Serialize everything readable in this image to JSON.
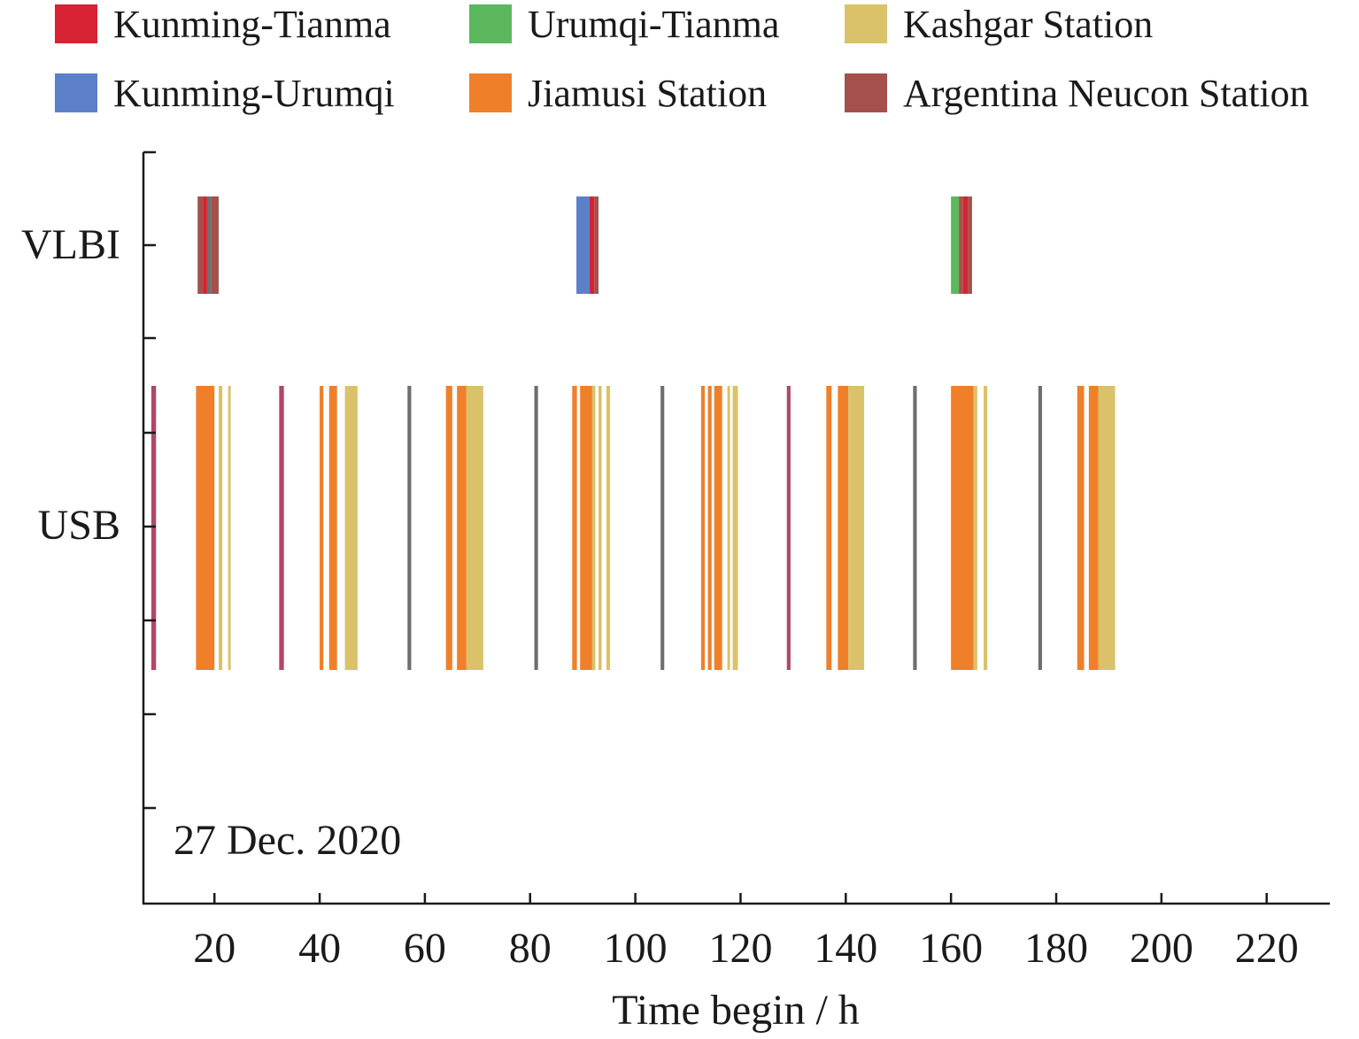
{
  "chart_data": {
    "type": "timeline",
    "legend": [
      {
        "name": "Kunming-Tianma",
        "color": "#d62232"
      },
      {
        "name": "Urumqi-Tianma",
        "color": "#5cb85c"
      },
      {
        "name": "Kashgar Station",
        "color": "#d9c26a"
      },
      {
        "name": "Kunming-Urumqi",
        "color": "#5b80c8"
      },
      {
        "name": "Jiamusi Station",
        "color": "#f07f2a"
      },
      {
        "name": "Argentina Neucon Station",
        "color": "#a5504a"
      }
    ],
    "categories": [
      "VLBI",
      "USB"
    ],
    "xlabel": "Time begin / h",
    "x_ticks": [
      20,
      40,
      60,
      80,
      100,
      120,
      140,
      160,
      180,
      200,
      220
    ],
    "xlim": [
      6.5,
      232
    ],
    "annotation": "27 Dec. 2020",
    "grey_color": "#6e6e6e",
    "magenta_color": "#b0476a",
    "vlbi_segments": [
      {
        "start": 16.8,
        "end": 17.8,
        "color": "#a5504a"
      },
      {
        "start": 17.8,
        "end": 18.6,
        "color": "#d62232"
      },
      {
        "start": 18.6,
        "end": 19.4,
        "color": "#6e6e6e"
      },
      {
        "start": 19.4,
        "end": 20.8,
        "color": "#a5504a"
      },
      {
        "start": 88.8,
        "end": 91.3,
        "color": "#5b80c8"
      },
      {
        "start": 91.3,
        "end": 92.2,
        "color": "#d62232"
      },
      {
        "start": 92.2,
        "end": 93.0,
        "color": "#a5504a"
      },
      {
        "start": 160.0,
        "end": 161.5,
        "color": "#5cb85c"
      },
      {
        "start": 161.5,
        "end": 162.3,
        "color": "#a5504a"
      },
      {
        "start": 162.3,
        "end": 163.2,
        "color": "#d62232"
      },
      {
        "start": 163.2,
        "end": 164.0,
        "color": "#a5504a"
      }
    ],
    "usb_segments": [
      {
        "start": 8.0,
        "end": 8.9,
        "color": "#b0476a"
      },
      {
        "start": 16.5,
        "end": 20.0,
        "color": "#f07f2a"
      },
      {
        "start": 20.8,
        "end": 21.5,
        "color": "#d9c26a"
      },
      {
        "start": 22.6,
        "end": 23.1,
        "color": "#d9c26a"
      },
      {
        "start": 32.3,
        "end": 33.2,
        "color": "#b0476a"
      },
      {
        "start": 40.0,
        "end": 40.7,
        "color": "#f07f2a"
      },
      {
        "start": 41.8,
        "end": 43.3,
        "color": "#f07f2a"
      },
      {
        "start": 44.8,
        "end": 45.3,
        "color": "#d9c26a"
      },
      {
        "start": 45.3,
        "end": 47.2,
        "color": "#d9c26a"
      },
      {
        "start": 56.7,
        "end": 57.4,
        "color": "#6e6e6e"
      },
      {
        "start": 64.0,
        "end": 65.2,
        "color": "#f07f2a"
      },
      {
        "start": 66.1,
        "end": 67.9,
        "color": "#f07f2a"
      },
      {
        "start": 67.9,
        "end": 71.1,
        "color": "#d9c26a"
      },
      {
        "start": 80.8,
        "end": 81.5,
        "color": "#6e6e6e"
      },
      {
        "start": 88.0,
        "end": 88.9,
        "color": "#f07f2a"
      },
      {
        "start": 89.5,
        "end": 91.8,
        "color": "#f07f2a"
      },
      {
        "start": 91.8,
        "end": 92.4,
        "color": "#d9c26a"
      },
      {
        "start": 93.0,
        "end": 93.6,
        "color": "#d9c26a"
      },
      {
        "start": 94.5,
        "end": 95.2,
        "color": "#d9c26a"
      },
      {
        "start": 104.8,
        "end": 105.5,
        "color": "#6e6e6e"
      },
      {
        "start": 112.5,
        "end": 113.2,
        "color": "#f07f2a"
      },
      {
        "start": 113.8,
        "end": 114.5,
        "color": "#f07f2a"
      },
      {
        "start": 115.0,
        "end": 116.5,
        "color": "#f07f2a"
      },
      {
        "start": 117.5,
        "end": 118.0,
        "color": "#d9c26a"
      },
      {
        "start": 118.5,
        "end": 119.5,
        "color": "#d9c26a"
      },
      {
        "start": 128.8,
        "end": 129.5,
        "color": "#b0476a"
      },
      {
        "start": 136.3,
        "end": 137.3,
        "color": "#f07f2a"
      },
      {
        "start": 138.5,
        "end": 140.5,
        "color": "#f07f2a"
      },
      {
        "start": 140.5,
        "end": 143.5,
        "color": "#d9c26a"
      },
      {
        "start": 152.8,
        "end": 153.5,
        "color": "#6e6e6e"
      },
      {
        "start": 160.0,
        "end": 164.3,
        "color": "#f07f2a"
      },
      {
        "start": 164.3,
        "end": 165.0,
        "color": "#d9c26a"
      },
      {
        "start": 166.2,
        "end": 166.9,
        "color": "#d9c26a"
      },
      {
        "start": 176.6,
        "end": 177.3,
        "color": "#6e6e6e"
      },
      {
        "start": 184.0,
        "end": 185.3,
        "color": "#f07f2a"
      },
      {
        "start": 186.2,
        "end": 188.0,
        "color": "#f07f2a"
      },
      {
        "start": 188.0,
        "end": 191.2,
        "color": "#d9c26a"
      }
    ]
  }
}
